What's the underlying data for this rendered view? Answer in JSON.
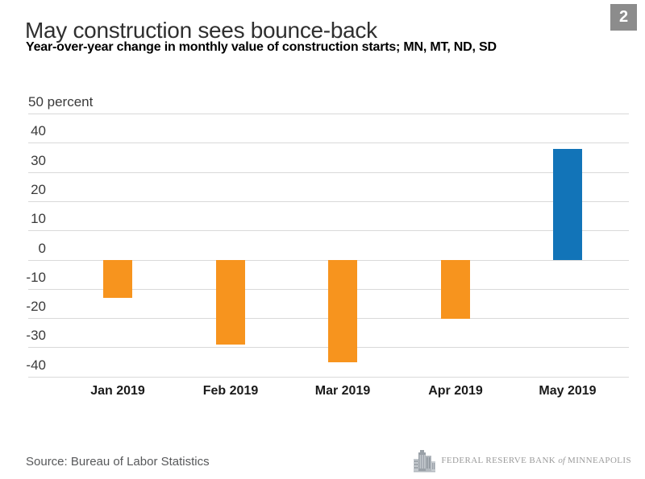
{
  "header": {
    "title": "May construction sees bounce-back",
    "subtitle": "Year-over-year change in monthly value of construction starts; MN, MT, ND, SD",
    "page_badge": "2",
    "badge_color": "#8c8c8c"
  },
  "chart_data": {
    "type": "bar",
    "title": "May construction sees bounce-back",
    "subtitle": "Year-over-year change in monthly value of construction starts; MN, MT, ND, SD",
    "categories": [
      "Jan 2019",
      "Feb 2019",
      "Mar 2019",
      "Apr 2019",
      "May 2019"
    ],
    "values": [
      -13,
      -29,
      -35,
      -20,
      38
    ],
    "xlabel": "",
    "ylabel": "percent",
    "ylim": [
      -40,
      50
    ],
    "ytick_step": 10,
    "ytick_labels": [
      "50 percent",
      "40",
      "30",
      "20",
      "10",
      "0",
      "-10",
      "-20",
      "-30",
      "-40"
    ],
    "grid": true,
    "legend": "none",
    "colors": {
      "positive_bar": "#1274b8",
      "negative_bar": "#f7941e",
      "gridline": "#d9d9d9"
    }
  },
  "footer": {
    "source": "Source: Bureau of Labor Statistics",
    "logo": {
      "part1": "FEDERAL RESERVE BANK",
      "of": "of",
      "part2": "MINNEAPOLIS",
      "icon": "building-skyline-icon"
    }
  }
}
